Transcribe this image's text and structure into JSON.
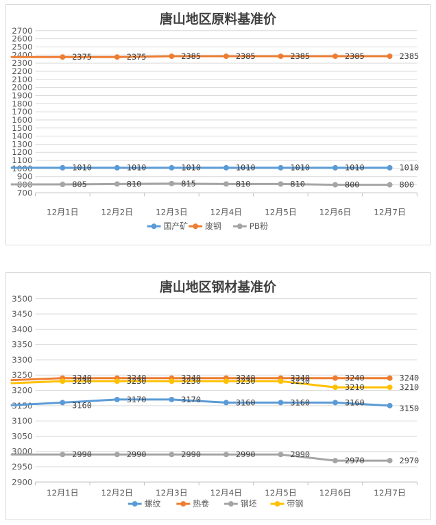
{
  "charts": [
    {
      "id": "panel-1",
      "chart_data": {
        "type": "line",
        "title": "唐山地区原料基准价",
        "categories": [
          "12月1日",
          "12月2日",
          "12月3日",
          "12月4日",
          "12月5日",
          "12月6日",
          "12月7日"
        ],
        "ylim": [
          700,
          2700
        ],
        "yticks": [
          700,
          800,
          900,
          1000,
          1100,
          1200,
          1300,
          1400,
          1500,
          1600,
          1700,
          1800,
          1900,
          2000,
          2100,
          2200,
          2300,
          2400,
          2500,
          2600,
          2700
        ],
        "grid": true,
        "legend": "bottom",
        "series": [
          {
            "name": "国产矿",
            "color": "#5b9bd5",
            "values": [
              1010,
              1010,
              1010,
              1010,
              1010,
              1010,
              1010
            ]
          },
          {
            "name": "废钢",
            "color": "#ed7d31",
            "values": [
              2375,
              2375,
              2385,
              2385,
              2385,
              2385,
              2385
            ]
          },
          {
            "name": "PB粉",
            "color": "#a5a5a5",
            "values": [
              805,
              810,
              815,
              810,
              810,
              800,
              800
            ]
          }
        ]
      }
    },
    {
      "id": "panel-2",
      "chart_data": {
        "type": "line",
        "title": "唐山地区钢材基准价",
        "categories": [
          "12月1日",
          "12月2日",
          "12月3日",
          "12月4日",
          "12月5日",
          "12月6日",
          "12月7日"
        ],
        "ylim": [
          2900,
          3500
        ],
        "yticks": [
          2900,
          2950,
          3000,
          3050,
          3100,
          3150,
          3200,
          3250,
          3300,
          3350,
          3400,
          3450,
          3500
        ],
        "grid": true,
        "legend": "bottom",
        "series": [
          {
            "name": "螺纹",
            "color": "#5b9bd5",
            "values": [
              3160,
              3170,
              3170,
              3160,
              3160,
              3160,
              3150
            ]
          },
          {
            "name": "热卷",
            "color": "#ed7d31",
            "values": [
              3240,
              3240,
              3240,
              3240,
              3240,
              3240,
              3240
            ]
          },
          {
            "name": "钢坯",
            "color": "#a5a5a5",
            "values": [
              2990,
              2990,
              2990,
              2990,
              2990,
              2970,
              2970
            ]
          },
          {
            "name": "带钢",
            "color": "#ffc000",
            "values": [
              3230,
              3230,
              3230,
              3230,
              3230,
              3210,
              3210
            ]
          }
        ]
      }
    }
  ]
}
